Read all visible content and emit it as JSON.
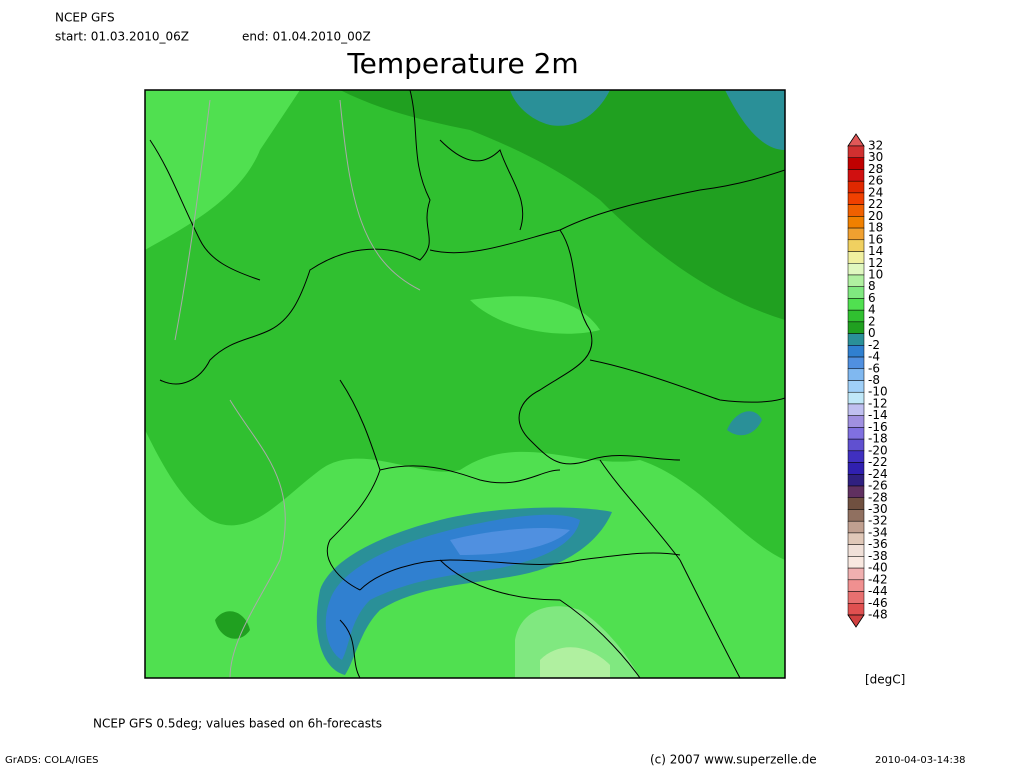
{
  "header": {
    "model": "NCEP GFS",
    "start": "start: 01.03.2010_06Z",
    "end": "end: 01.04.2010_00Z",
    "title": "Temperature 2m"
  },
  "colorbar": {
    "levels": [
      32,
      30,
      28,
      26,
      24,
      22,
      20,
      18,
      16,
      14,
      12,
      10,
      8,
      6,
      4,
      2,
      0,
      -2,
      -4,
      -6,
      -8,
      -10,
      -12,
      -14,
      -16,
      -18,
      -20,
      -22,
      -24,
      -26,
      -28,
      -30,
      -32,
      -34,
      -36,
      -38,
      -40,
      -42,
      -44,
      -46,
      -48
    ],
    "colors": [
      "#e05858",
      "#d03030",
      "#c00000",
      "#d01010",
      "#e02800",
      "#f04000",
      "#f06000",
      "#f08000",
      "#f0a030",
      "#f0d060",
      "#f0f0a0",
      "#e0f8c0",
      "#b0f0a0",
      "#80e880",
      "#50e050",
      "#30c030",
      "#20a020",
      "#2a9098",
      "#3080d0",
      "#5090e0",
      "#80b8f0",
      "#a0d0f8",
      "#c0e8f8",
      "#c0c0f0",
      "#a090e0",
      "#8070e0",
      "#6050d0",
      "#4030c0",
      "#3020b0",
      "#302080",
      "#603060",
      "#705040",
      "#907060",
      "#c0a090",
      "#e0c8b8",
      "#f0e0d8",
      "#f8e8e0",
      "#f0b0b0",
      "#f09090",
      "#e87070",
      "#e05050",
      "#d04040"
    ],
    "unit": "[degC]"
  },
  "footer": {
    "note": "NCEP GFS 0.5deg; values based on 6h-forecasts",
    "software": "GrADS: COLA/IGES",
    "copyright": "(c) 2007 www.superzelle.de",
    "timestamp": "2010-04-03-14:38"
  }
}
